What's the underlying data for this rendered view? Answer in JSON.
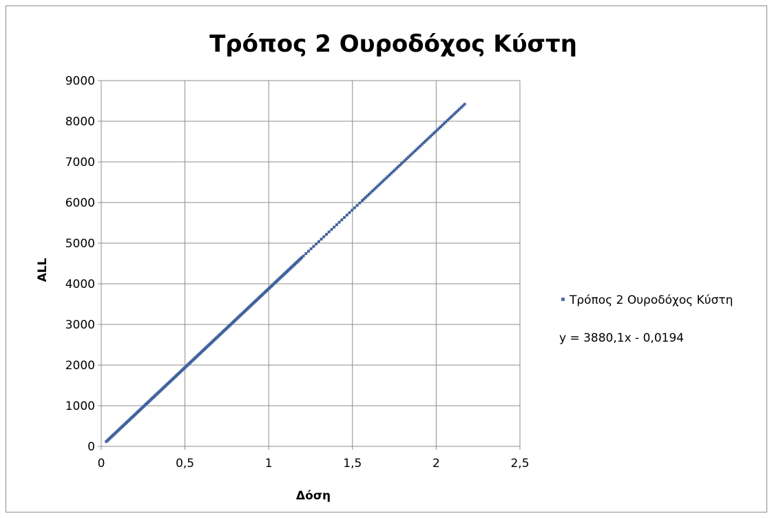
{
  "chart_data": {
    "type": "scatter",
    "title": "Τρόπος 2 Ουροδόχος Κύστη",
    "xlabel": "Δόση",
    "ylabel": "ALL",
    "xlim": [
      0,
      2.5
    ],
    "ylim": [
      0,
      9000
    ],
    "x_ticks": [
      "0",
      "0,5",
      "1",
      "1,5",
      "2",
      "2,5"
    ],
    "y_ticks": [
      "0",
      "1000",
      "2000",
      "3000",
      "4000",
      "5000",
      "6000",
      "7000",
      "8000",
      "9000"
    ],
    "grid": true,
    "legend_position": "right",
    "series": [
      {
        "name": "Τρόπος 2 Ουροδόχος Κύστη",
        "color": "#4f6fa8",
        "x_range": [
          0.03,
          2.17
        ],
        "trendline": {
          "slope": 3880.1,
          "intercept": -0.0194
        }
      }
    ],
    "trendline_label": "y = 3880,1x - 0,0194"
  }
}
